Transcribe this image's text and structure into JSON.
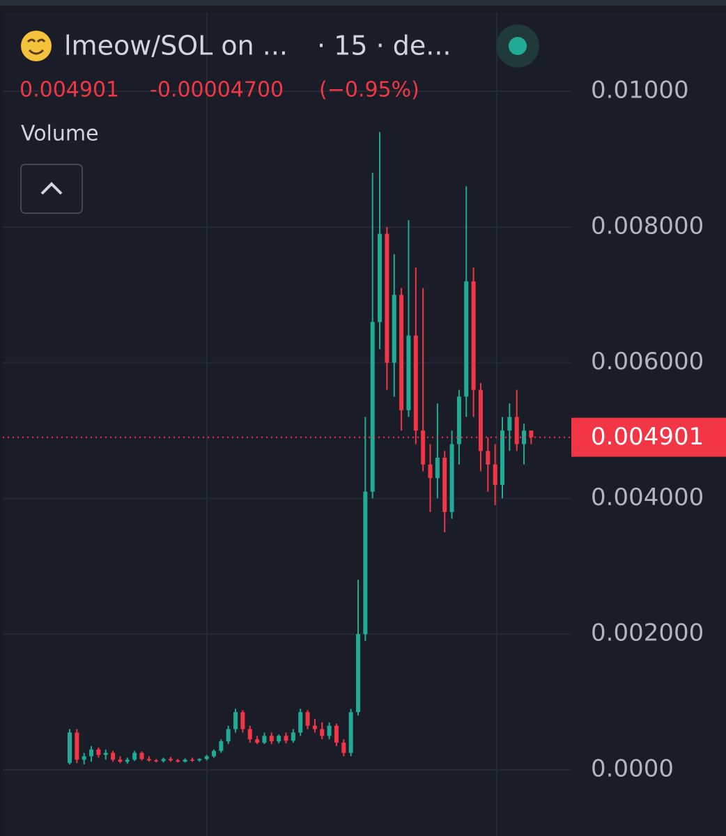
{
  "chart_data": {
    "type": "candlestick",
    "title": "lmeow/SOL on ...",
    "interval": "· 15 · de...",
    "last_price": 0.004901,
    "change": {
      "value": -4.7e-05,
      "label": "-0.00004700"
    },
    "change_percent": {
      "value": -0.95,
      "label": "(−0.95%)"
    },
    "indicator": "Volume",
    "up_color": "#22ab94",
    "down_color": "#f23645",
    "ylim": [
      -0.000975,
      0.01114
    ],
    "yticks": [
      {
        "value": 0,
        "label": "0.0000"
      },
      {
        "value": 0.002,
        "label": "0.002000"
      },
      {
        "value": 0.004,
        "label": "0.004000"
      },
      {
        "value": 0.006,
        "label": "0.006000"
      },
      {
        "value": 0.008,
        "label": "0.008000"
      },
      {
        "value": 0.01,
        "label": "0.01000"
      }
    ],
    "grid": true,
    "open": [
      0.0001,
      0.00055,
      0.00015,
      0.0002,
      0.0003,
      0.00022,
      0.00025,
      0.00015,
      0.00012,
      0.00015,
      0.00025,
      0.00016,
      0.00014,
      0.00013,
      0.00016,
      0.00014,
      0.00012,
      0.00015,
      0.00014,
      0.00016,
      0.0002,
      0.00028,
      0.00042,
      0.0006,
      0.00085,
      0.0006,
      0.00045,
      0.0004,
      0.0005,
      0.00042,
      0.0005,
      0.00043,
      0.00055,
      0.00085,
      0.00065,
      0.0006,
      0.0005,
      0.00065,
      0.0004,
      0.00025,
      0.00085,
      0.002,
      0.0041,
      0.0066,
      0.0079,
      0.006,
      0.007,
      0.0053,
      0.0064,
      0.005,
      0.0045,
      0.0043,
      0.0046,
      0.0038,
      0.0048,
      0.0055,
      0.0072,
      0.0056,
      0.0047,
      0.0045,
      0.0042,
      0.005,
      0.0052,
      0.0048,
      0.005
    ],
    "high": [
      0.0006,
      0.0006,
      0.00025,
      0.00035,
      0.00033,
      0.0003,
      0.00028,
      0.0002,
      0.00018,
      0.00028,
      0.00027,
      0.0002,
      0.00016,
      0.00018,
      0.00019,
      0.00016,
      0.00017,
      0.00018,
      0.00017,
      0.00022,
      0.0003,
      0.00045,
      0.00065,
      0.0009,
      0.00088,
      0.00065,
      0.0005,
      0.00055,
      0.00055,
      0.00052,
      0.00055,
      0.0006,
      0.0009,
      0.00088,
      0.00075,
      0.0007,
      0.0007,
      0.00068,
      0.00045,
      0.0009,
      0.0028,
      0.0052,
      0.0088,
      0.0094,
      0.008,
      0.0076,
      0.0071,
      0.0081,
      0.0074,
      0.0071,
      0.0048,
      0.0054,
      0.0047,
      0.005,
      0.0056,
      0.0086,
      0.0074,
      0.0057,
      0.0049,
      0.0048,
      0.0052,
      0.0054,
      0.0056,
      0.0051,
      0.005
    ],
    "low": [
      8e-05,
      0.0001,
      8e-05,
      0.00012,
      0.00018,
      0.00015,
      0.00012,
      0.0001,
      9e-05,
      0.00013,
      0.00014,
      0.00012,
      0.00011,
      0.00011,
      0.00012,
      0.00011,
      0.00011,
      0.00012,
      0.00012,
      0.00014,
      0.00018,
      0.00025,
      0.00038,
      0.00055,
      0.00055,
      0.0004,
      0.00038,
      0.00038,
      0.00038,
      0.00039,
      0.00039,
      0.0004,
      0.0005,
      0.0006,
      0.00055,
      0.00045,
      0.00045,
      0.00035,
      0.0002,
      0.0002,
      0.0008,
      0.0019,
      0.004,
      0.0062,
      0.0056,
      0.0055,
      0.005,
      0.0052,
      0.0048,
      0.0044,
      0.0038,
      0.004,
      0.0035,
      0.0037,
      0.0045,
      0.0052,
      0.0052,
      0.0044,
      0.0041,
      0.0039,
      0.004,
      0.0047,
      0.0047,
      0.0045,
      0.0048
    ],
    "close": [
      0.00055,
      0.00015,
      0.0002,
      0.0003,
      0.00022,
      0.00025,
      0.00015,
      0.00012,
      0.00015,
      0.00025,
      0.00016,
      0.00014,
      0.00013,
      0.00016,
      0.00014,
      0.00012,
      0.00015,
      0.00014,
      0.00016,
      0.0002,
      0.00028,
      0.00042,
      0.0006,
      0.00085,
      0.0006,
      0.00045,
      0.0004,
      0.0005,
      0.00042,
      0.0005,
      0.00043,
      0.00055,
      0.00085,
      0.00065,
      0.0006,
      0.0005,
      0.00065,
      0.0004,
      0.00025,
      0.00085,
      0.002,
      0.0041,
      0.0066,
      0.0079,
      0.006,
      0.007,
      0.0053,
      0.0064,
      0.005,
      0.0045,
      0.0043,
      0.0046,
      0.0038,
      0.0048,
      0.0055,
      0.0072,
      0.0056,
      0.0047,
      0.0045,
      0.0042,
      0.005,
      0.0052,
      0.0048,
      0.005,
      0.004901
    ]
  }
}
